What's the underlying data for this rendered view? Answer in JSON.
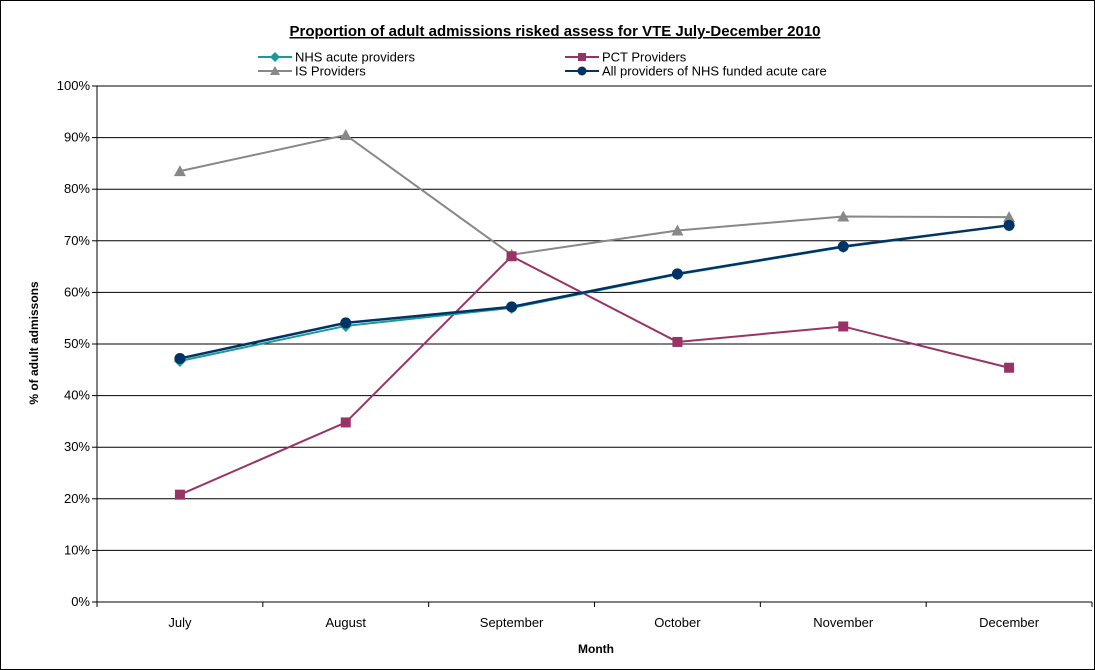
{
  "chart_data": {
    "type": "line",
    "title": "Proportion of adult admissions risked assess for VTE July-December 2010",
    "xlabel": "Month",
    "ylabel": "% of adult admissons",
    "categories": [
      "July",
      "August",
      "September",
      "October",
      "November",
      "December"
    ],
    "ylim": [
      0,
      100
    ],
    "yticks": [
      "0%",
      "10%",
      "20%",
      "30%",
      "40%",
      "50%",
      "60%",
      "70%",
      "80%",
      "90%",
      "100%"
    ],
    "grid": true,
    "legend_position": "top",
    "series": [
      {
        "name": "NHS acute providers",
        "color": "#1a9a96",
        "marker": "diamond",
        "values": [
          46.7,
          53.5,
          57.0,
          63.5,
          68.8,
          73.0
        ]
      },
      {
        "name": "PCT Providers",
        "color": "#993366",
        "marker": "square",
        "values": [
          20.8,
          34.8,
          67.0,
          50.4,
          53.4,
          45.4
        ]
      },
      {
        "name": "IS Providers",
        "color": "#888888",
        "marker": "triangle",
        "values": [
          83.5,
          90.5,
          67.3,
          72.0,
          74.7,
          74.6
        ]
      },
      {
        "name": "All providers of NHS funded acute care",
        "color": "#003366",
        "marker": "circle",
        "values": [
          47.2,
          54.1,
          57.2,
          63.6,
          68.9,
          73.0
        ]
      }
    ]
  }
}
